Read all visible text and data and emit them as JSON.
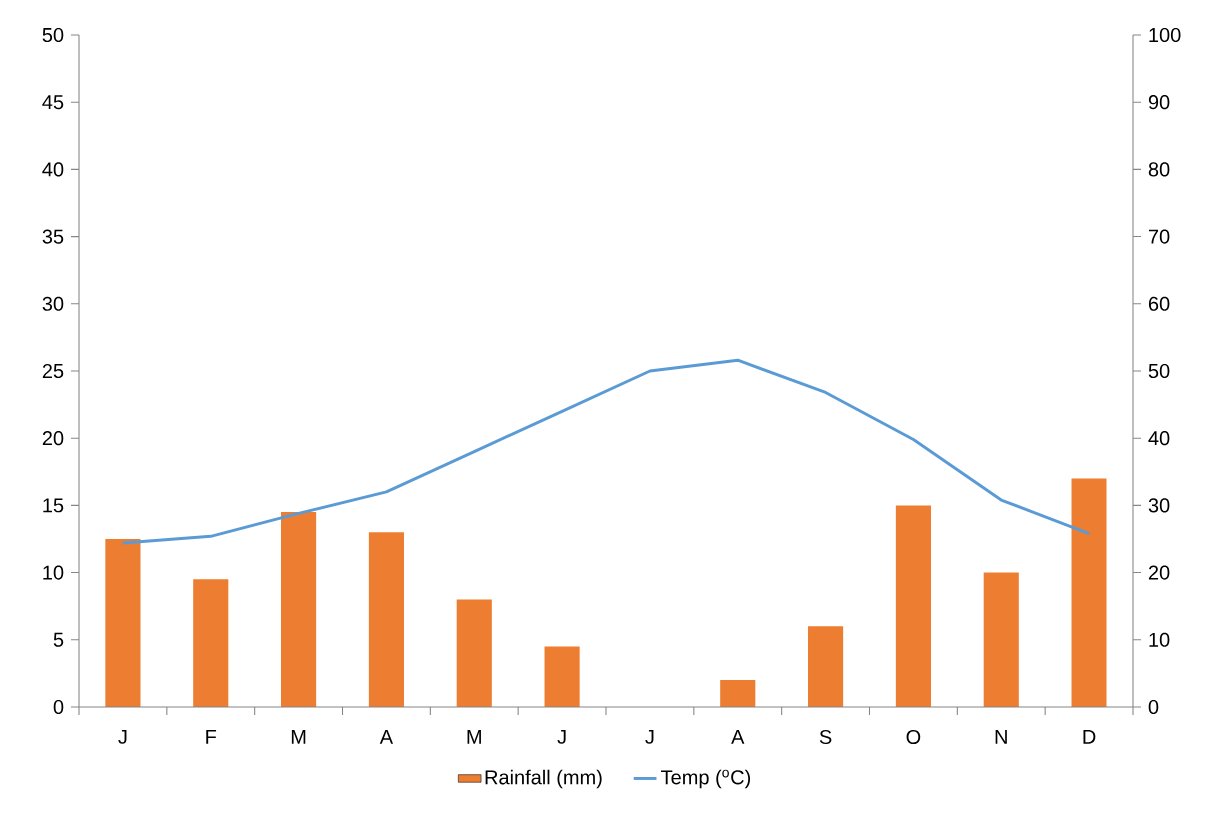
{
  "chart_data": {
    "type": "bar",
    "categories": [
      "J",
      "F",
      "M",
      "A",
      "M",
      "J",
      "J",
      "A",
      "S",
      "O",
      "N",
      "D"
    ],
    "series": [
      {
        "name": "Rainfall (mm)",
        "axis": "y2",
        "color": "#ed7d31",
        "values": [
          25,
          19,
          29,
          26,
          16,
          9,
          0,
          4,
          12,
          30,
          20,
          34
        ]
      },
      {
        "name": "Temp ($^{o}$C)",
        "type": "line",
        "color": "#5b9bd5",
        "values": [
          12.2,
          12.7,
          14.4,
          16.0,
          19.0,
          22.0,
          25.0,
          25.8,
          23.4,
          19.9,
          15.4,
          12.9
        ]
      }
    ],
    "ylim": [
      0,
      50
    ],
    "yticks": [
      0,
      5,
      10,
      15,
      20,
      25,
      30,
      35,
      40,
      45,
      50
    ],
    "y2lim": [
      0,
      100
    ],
    "y2ticks": [
      0,
      10,
      20,
      30,
      40,
      50,
      60,
      70,
      80,
      90,
      100
    ],
    "legend": "bottom"
  }
}
